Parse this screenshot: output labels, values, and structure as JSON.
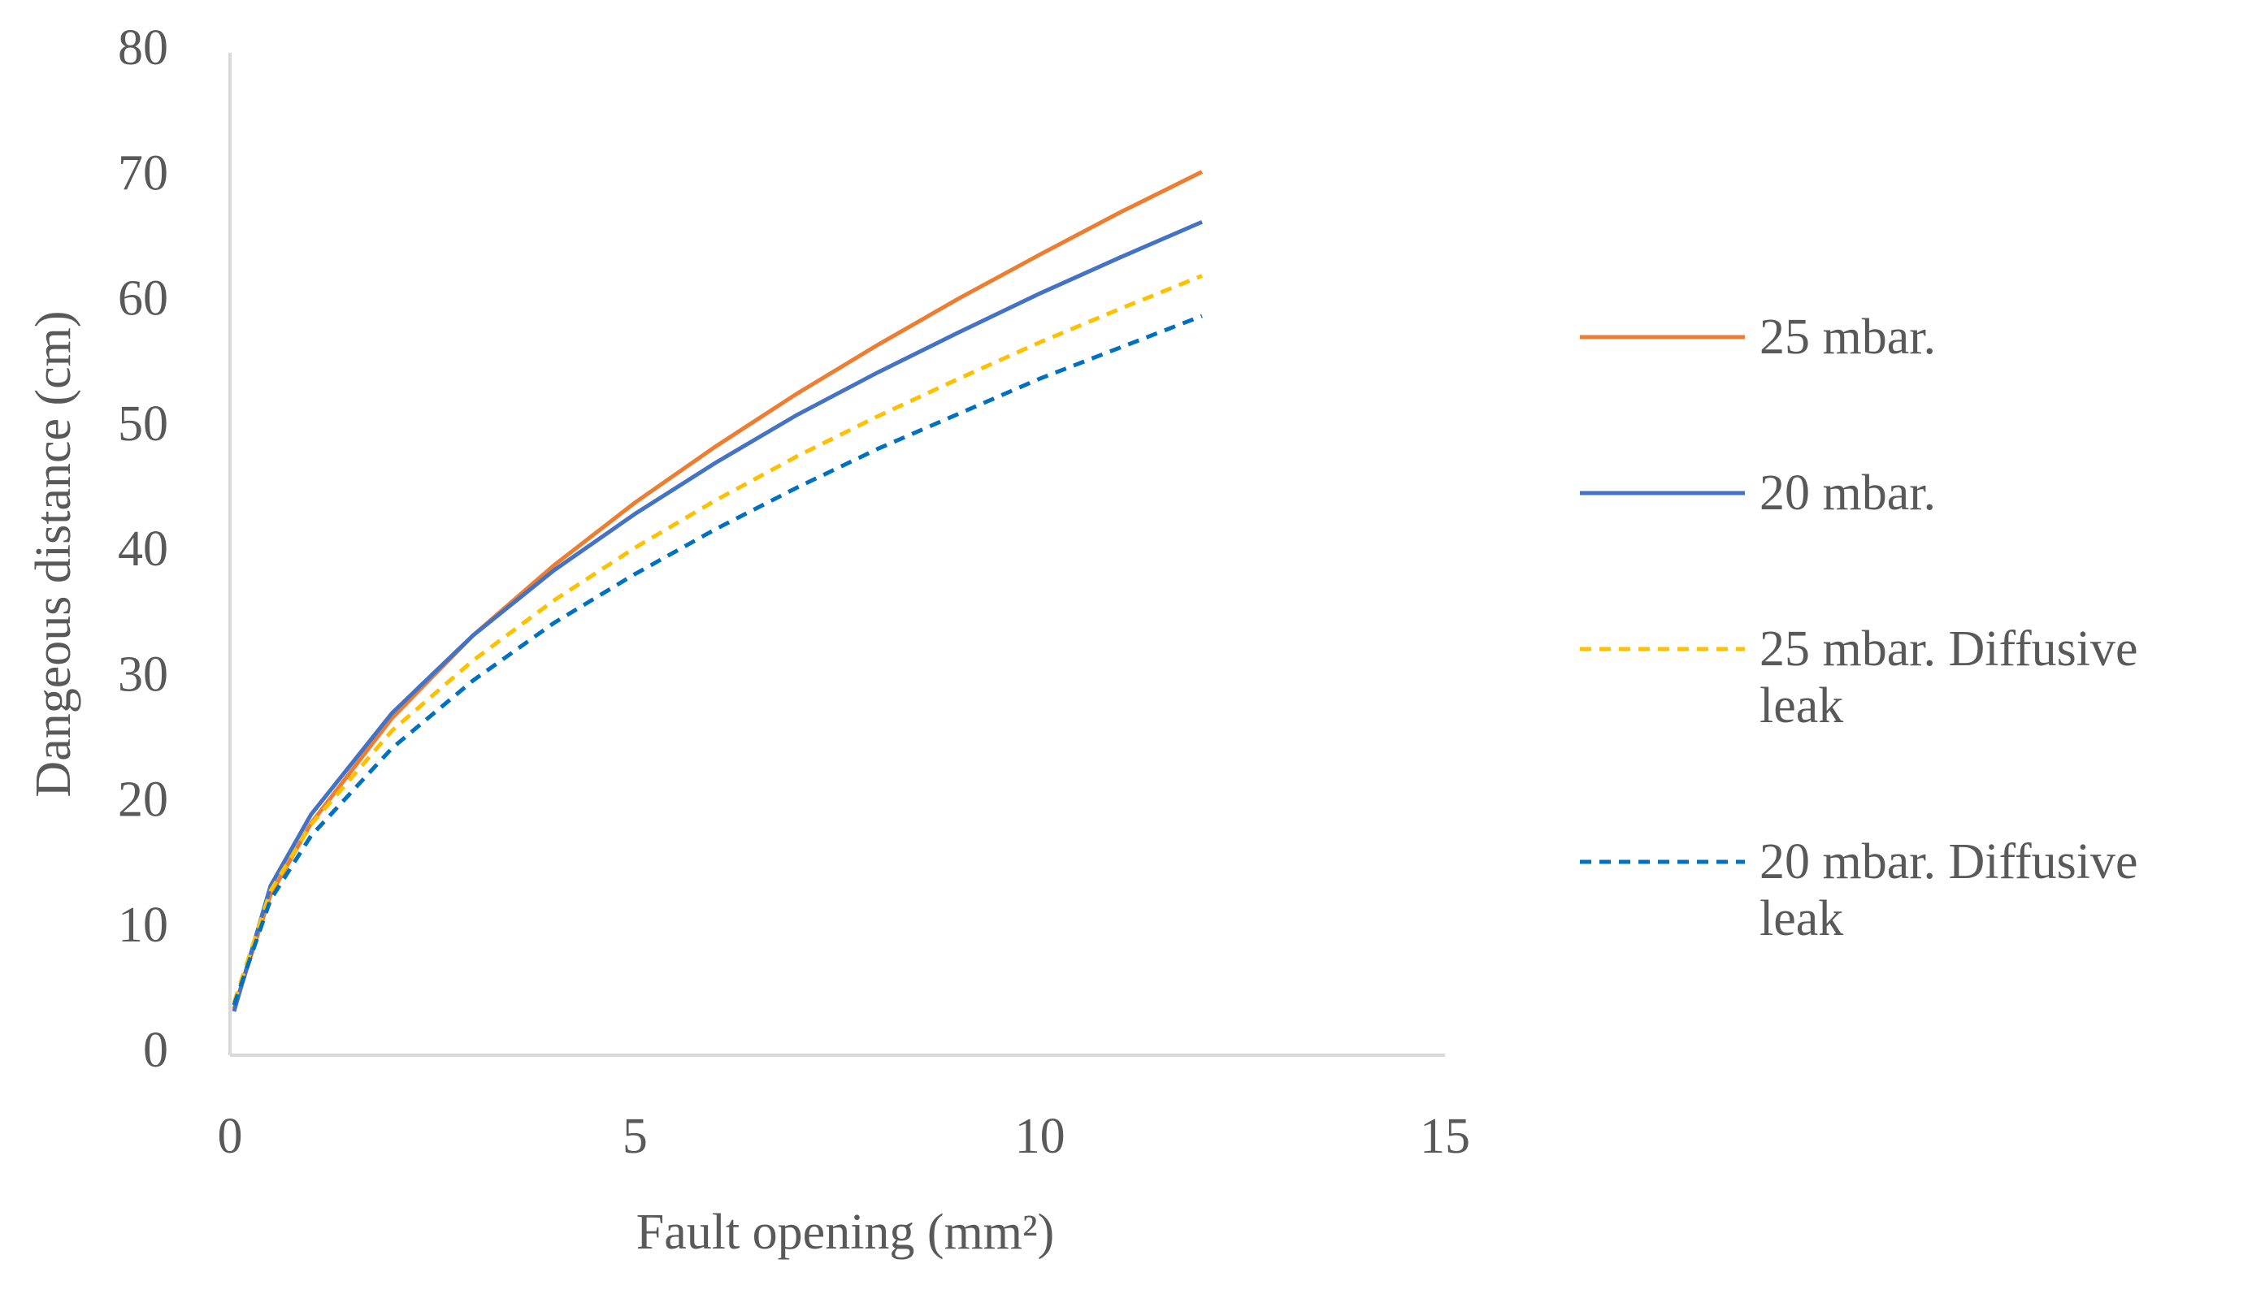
{
  "chart_data": {
    "type": "line",
    "xlabel": "Fault opening (mm²)",
    "ylabel": "Dangeous distance (cm)",
    "x": [
      0.05,
      0.5,
      1,
      2,
      3,
      4,
      5,
      6,
      7,
      8,
      9,
      10,
      11,
      12
    ],
    "series": [
      {
        "name": "25 mbar.",
        "color": "#ed7d31",
        "dashed": false,
        "values": [
          3.7,
          12.8,
          18.5,
          26.9,
          33.5,
          39.1,
          44.1,
          48.6,
          52.8,
          56.7,
          60.4,
          63.9,
          67.3,
          70.5
        ]
      },
      {
        "name": "20 mbar.",
        "color": "#4472c4",
        "dashed": false,
        "values": [
          3.5,
          13.5,
          19.2,
          27.3,
          33.5,
          38.7,
          43.2,
          47.3,
          51.1,
          54.5,
          57.7,
          60.8,
          63.7,
          66.5
        ]
      },
      {
        "name": "25 mbar. Diffusive leak",
        "color": "#ffc000",
        "dashed": true,
        "values": [
          4.2,
          13.1,
          18.4,
          25.9,
          31.5,
          36.3,
          40.5,
          44.3,
          47.8,
          51.0,
          54.0,
          56.9,
          59.6,
          62.2
        ]
      },
      {
        "name": "20 mbar. Diffusive leak",
        "color": "#0070c0",
        "dashed": true,
        "values": [
          4.0,
          12.4,
          17.5,
          24.5,
          29.9,
          34.5,
          38.4,
          42.0,
          45.3,
          48.4,
          51.2,
          54.0,
          56.5,
          59.0
        ]
      }
    ],
    "xlim": [
      0,
      15
    ],
    "xticks": [
      0,
      5,
      10,
      15
    ],
    "ylim": [
      0,
      80
    ],
    "yticks": [
      0,
      10,
      20,
      30,
      40,
      50,
      60,
      70,
      80
    ],
    "grid": false,
    "legend": "right"
  }
}
